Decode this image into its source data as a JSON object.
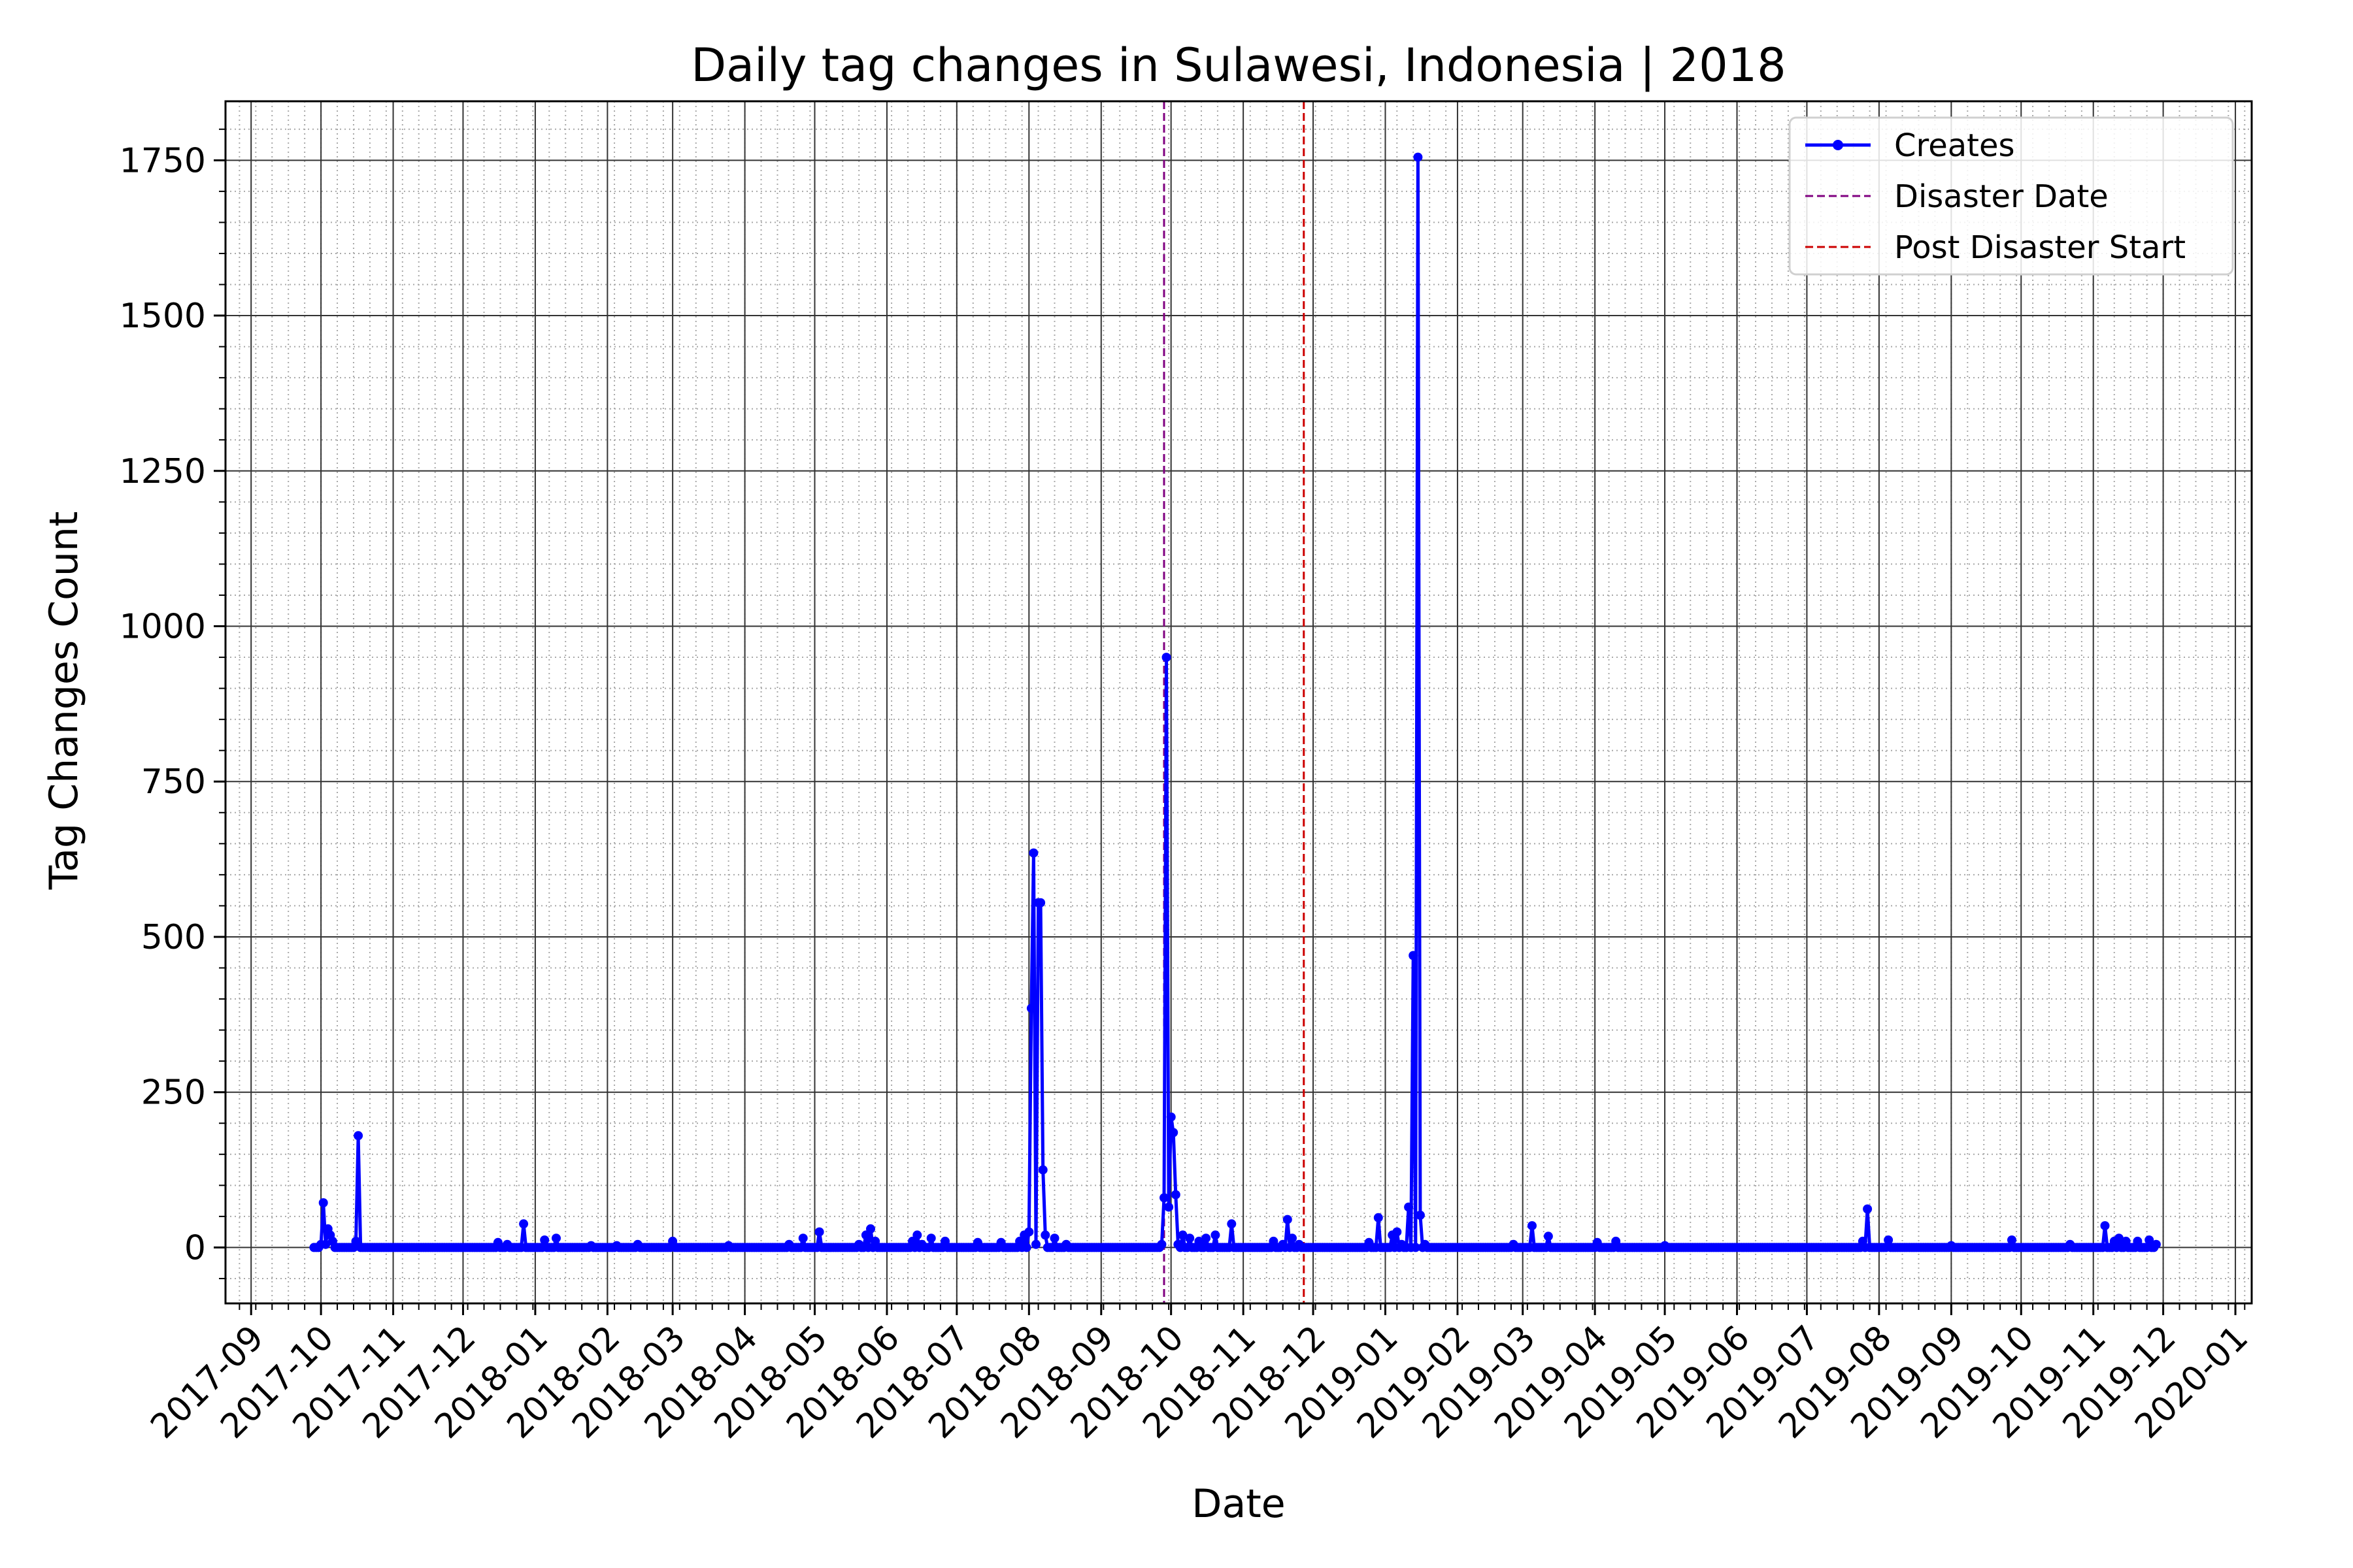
{
  "chart_data": {
    "type": "line",
    "title": "Daily tag changes in Sulawesi, Indonesia | 2018",
    "xlabel": "Date",
    "ylabel": "Tag Changes Count",
    "x_axis_type": "date",
    "xlim": [
      "2017-08-21",
      "2020-01-08"
    ],
    "ylim": [
      -90,
      1845
    ],
    "grid": "major solid dark, minor dotted light",
    "legend_position": "top-right",
    "x_ticks": [
      "2017-09",
      "2017-10",
      "2017-11",
      "2017-12",
      "2018-01",
      "2018-02",
      "2018-03",
      "2018-04",
      "2018-05",
      "2018-06",
      "2018-07",
      "2018-08",
      "2018-09",
      "2018-10",
      "2018-11",
      "2018-12",
      "2019-01",
      "2019-02",
      "2019-03",
      "2019-04",
      "2019-05",
      "2019-06",
      "2019-07",
      "2019-08",
      "2019-09",
      "2019-10",
      "2019-11",
      "2019-12",
      "2020-01"
    ],
    "y_ticks": [
      0,
      250,
      500,
      750,
      1000,
      1250,
      1500,
      1750
    ],
    "series": [
      {
        "name": "Creates",
        "color": "#0000ff",
        "marker": "circle",
        "baseline_range": [
          "2017-09-28",
          "2019-11-28"
        ],
        "points": [
          {
            "x": "2017-09-28",
            "y": 0
          },
          {
            "x": "2017-09-30",
            "y": 0
          },
          {
            "x": "2017-10-01",
            "y": 5
          },
          {
            "x": "2017-10-02",
            "y": 72
          },
          {
            "x": "2017-10-03",
            "y": 5
          },
          {
            "x": "2017-10-04",
            "y": 30
          },
          {
            "x": "2017-10-05",
            "y": 20
          },
          {
            "x": "2017-10-06",
            "y": 10
          },
          {
            "x": "2017-10-16",
            "y": 10
          },
          {
            "x": "2017-10-17",
            "y": 180
          },
          {
            "x": "2017-10-18",
            "y": 0
          },
          {
            "x": "2017-12-16",
            "y": 8
          },
          {
            "x": "2017-12-20",
            "y": 5
          },
          {
            "x": "2017-12-27",
            "y": 38
          },
          {
            "x": "2018-01-05",
            "y": 12
          },
          {
            "x": "2018-01-10",
            "y": 15
          },
          {
            "x": "2018-01-25",
            "y": 3
          },
          {
            "x": "2018-02-05",
            "y": 3
          },
          {
            "x": "2018-02-14",
            "y": 5
          },
          {
            "x": "2018-03-01",
            "y": 10
          },
          {
            "x": "2018-03-25",
            "y": 3
          },
          {
            "x": "2018-04-20",
            "y": 5
          },
          {
            "x": "2018-04-26",
            "y": 15
          },
          {
            "x": "2018-05-03",
            "y": 25
          },
          {
            "x": "2018-05-20",
            "y": 5
          },
          {
            "x": "2018-05-23",
            "y": 20
          },
          {
            "x": "2018-05-25",
            "y": 30
          },
          {
            "x": "2018-05-27",
            "y": 10
          },
          {
            "x": "2018-06-12",
            "y": 10
          },
          {
            "x": "2018-06-14",
            "y": 20
          },
          {
            "x": "2018-06-16",
            "y": 5
          },
          {
            "x": "2018-06-20",
            "y": 15
          },
          {
            "x": "2018-06-26",
            "y": 10
          },
          {
            "x": "2018-07-10",
            "y": 8
          },
          {
            "x": "2018-07-20",
            "y": 8
          },
          {
            "x": "2018-07-28",
            "y": 10
          },
          {
            "x": "2018-07-30",
            "y": 20
          },
          {
            "x": "2018-08-01",
            "y": 25
          },
          {
            "x": "2018-08-02",
            "y": 385
          },
          {
            "x": "2018-08-03",
            "y": 635
          },
          {
            "x": "2018-08-04",
            "y": 5
          },
          {
            "x": "2018-08-05",
            "y": 555
          },
          {
            "x": "2018-08-06",
            "y": 555
          },
          {
            "x": "2018-08-07",
            "y": 125
          },
          {
            "x": "2018-08-08",
            "y": 20
          },
          {
            "x": "2018-08-12",
            "y": 15
          },
          {
            "x": "2018-08-17",
            "y": 5
          },
          {
            "x": "2018-09-27",
            "y": 5
          },
          {
            "x": "2018-09-28",
            "y": 80
          },
          {
            "x": "2018-09-29",
            "y": 950
          },
          {
            "x": "2018-09-30",
            "y": 65
          },
          {
            "x": "2018-10-01",
            "y": 210
          },
          {
            "x": "2018-10-02",
            "y": 185
          },
          {
            "x": "2018-10-03",
            "y": 85
          },
          {
            "x": "2018-10-04",
            "y": 5
          },
          {
            "x": "2018-10-06",
            "y": 20
          },
          {
            "x": "2018-10-09",
            "y": 15
          },
          {
            "x": "2018-10-13",
            "y": 10
          },
          {
            "x": "2018-10-16",
            "y": 15
          },
          {
            "x": "2018-10-20",
            "y": 20
          },
          {
            "x": "2018-10-27",
            "y": 38
          },
          {
            "x": "2018-11-14",
            "y": 10
          },
          {
            "x": "2018-11-18",
            "y": 5
          },
          {
            "x": "2018-11-20",
            "y": 45
          },
          {
            "x": "2018-11-22",
            "y": 15
          },
          {
            "x": "2018-11-25",
            "y": 5
          },
          {
            "x": "2018-12-25",
            "y": 8
          },
          {
            "x": "2018-12-29",
            "y": 48
          },
          {
            "x": "2019-01-04",
            "y": 20
          },
          {
            "x": "2019-01-06",
            "y": 25
          },
          {
            "x": "2019-01-08",
            "y": 5
          },
          {
            "x": "2019-01-11",
            "y": 65
          },
          {
            "x": "2019-01-13",
            "y": 470
          },
          {
            "x": "2019-01-15",
            "y": 1755
          },
          {
            "x": "2019-01-16",
            "y": 52
          },
          {
            "x": "2019-01-18",
            "y": 5
          },
          {
            "x": "2019-02-25",
            "y": 5
          },
          {
            "x": "2019-03-05",
            "y": 35
          },
          {
            "x": "2019-03-12",
            "y": 18
          },
          {
            "x": "2019-04-02",
            "y": 8
          },
          {
            "x": "2019-04-10",
            "y": 10
          },
          {
            "x": "2019-05-01",
            "y": 3
          },
          {
            "x": "2019-07-25",
            "y": 10
          },
          {
            "x": "2019-07-27",
            "y": 62
          },
          {
            "x": "2019-08-05",
            "y": 12
          },
          {
            "x": "2019-09-01",
            "y": 3
          },
          {
            "x": "2019-09-27",
            "y": 12
          },
          {
            "x": "2019-10-22",
            "y": 5
          },
          {
            "x": "2019-11-06",
            "y": 35
          },
          {
            "x": "2019-11-10",
            "y": 10
          },
          {
            "x": "2019-11-12",
            "y": 15
          },
          {
            "x": "2019-11-15",
            "y": 10
          },
          {
            "x": "2019-11-20",
            "y": 10
          },
          {
            "x": "2019-11-25",
            "y": 12
          },
          {
            "x": "2019-11-28",
            "y": 5
          }
        ]
      }
    ],
    "reference_lines": [
      {
        "name": "Disaster Date",
        "x": "2018-09-28",
        "color": "#800080",
        "style": "dashed"
      },
      {
        "name": "Post Disaster Start",
        "x": "2018-11-27",
        "color": "#cc0000",
        "style": "dashed"
      }
    ],
    "legend": [
      {
        "label": "Creates",
        "color": "#0000ff",
        "style": "line-marker"
      },
      {
        "label": "Disaster Date",
        "color": "#800080",
        "style": "dashed"
      },
      {
        "label": "Post Disaster Start",
        "color": "#cc0000",
        "style": "dashed"
      }
    ]
  }
}
